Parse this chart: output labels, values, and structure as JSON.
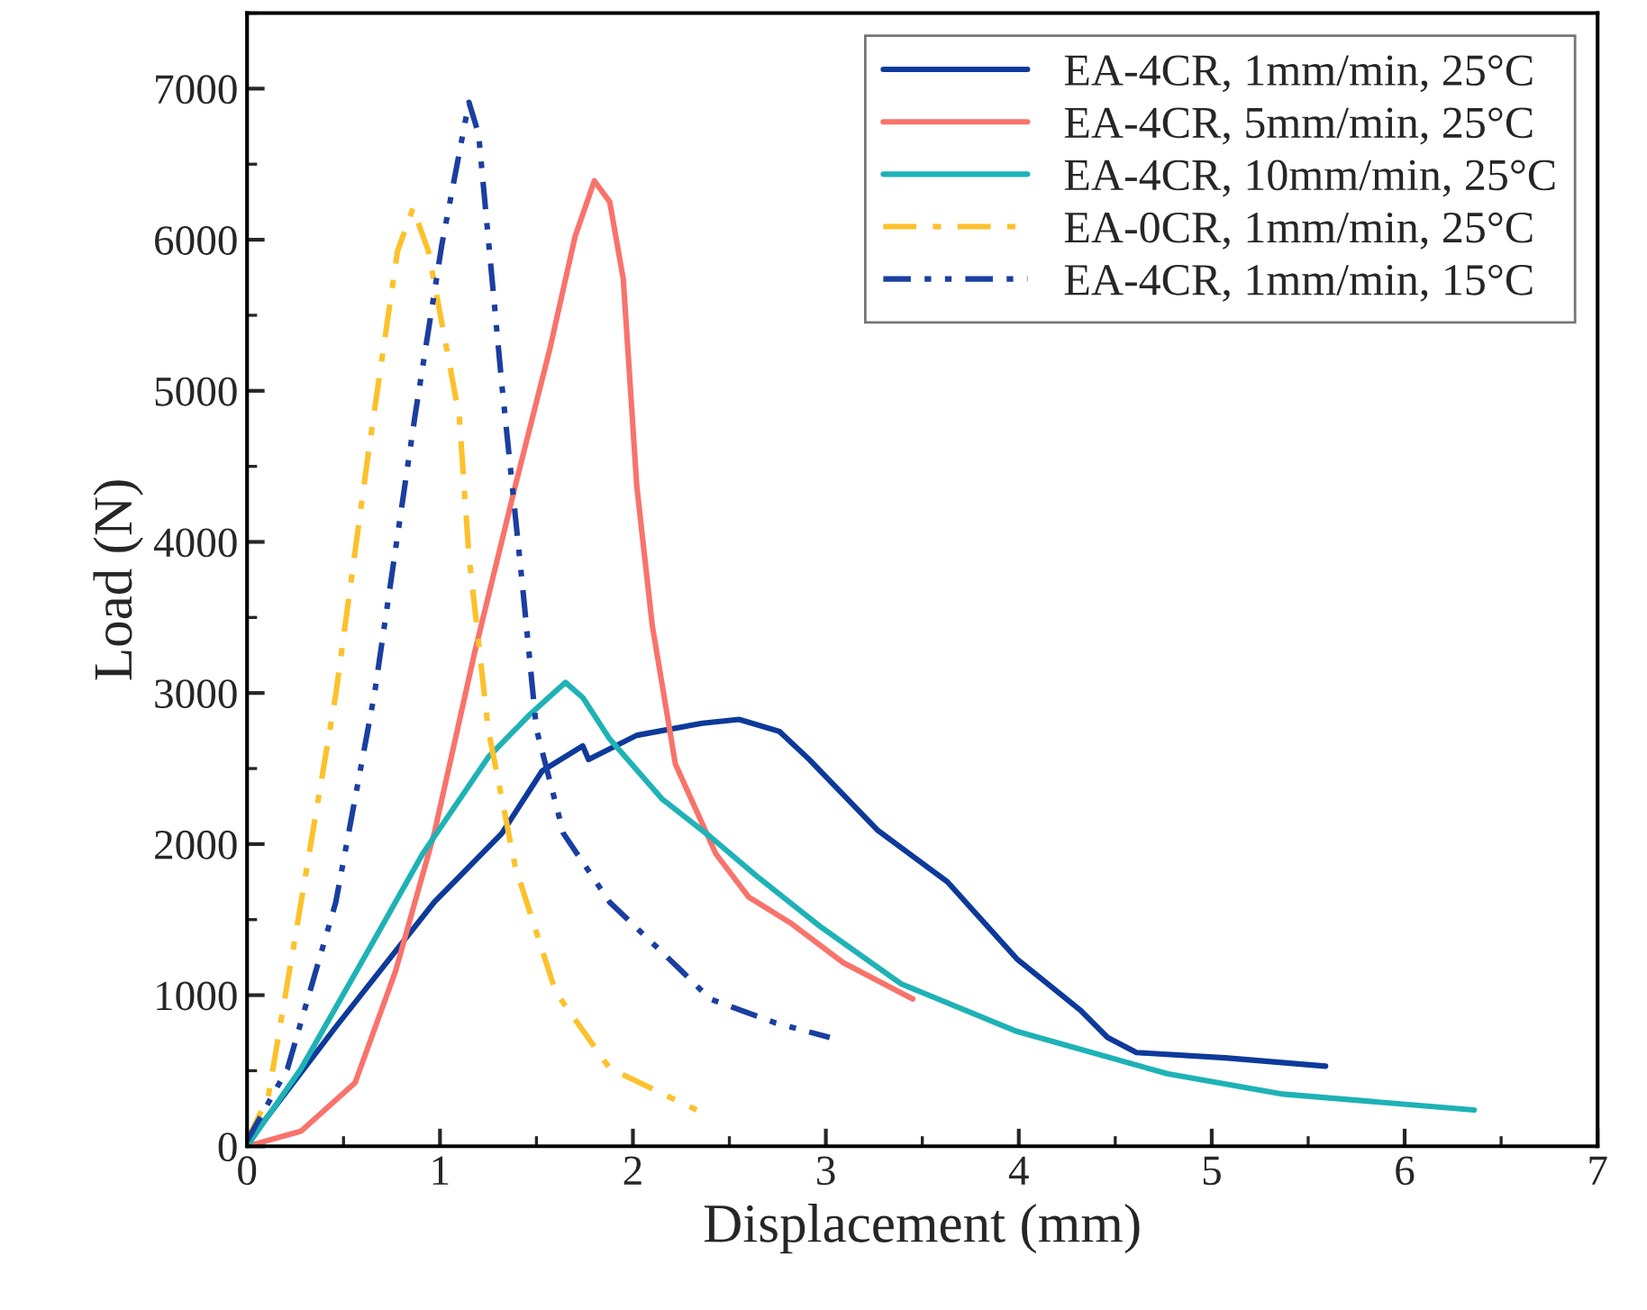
{
  "chart_data": {
    "type": "line",
    "xlabel": "Displacement (mm)",
    "ylabel": "Load (N)",
    "xlim": [
      0,
      7
    ],
    "xticks": [
      0,
      1,
      2,
      3,
      4,
      5,
      6,
      7
    ],
    "ylim": [
      0,
      7500
    ],
    "yticks": [
      0,
      1000,
      2000,
      3000,
      4000,
      5000,
      6000,
      7000
    ],
    "grid": false,
    "legend": "top right",
    "marker": "none",
    "series": [
      {
        "name": "EA-4CR, 1mm/min, 25°C",
        "color": "#0d3a9a",
        "line_style": "solid",
        "x": [
          0.01,
          0.46,
          0.97,
          1.32,
          1.53,
          1.74,
          1.77,
          2.02,
          2.36,
          2.55,
          2.76,
          2.91,
          3.27,
          3.63,
          3.99,
          4.32,
          4.46,
          4.61,
          5.07,
          5.59
        ],
        "values": [
          35,
          790,
          1615,
          2070,
          2485,
          2650,
          2560,
          2720,
          2800,
          2825,
          2745,
          2565,
          2090,
          1750,
          1240,
          900,
          720,
          620,
          585,
          530
        ]
      },
      {
        "name": "EA-4CR, 5mm/min, 25°C",
        "color": "#f8736b",
        "line_style": "solid",
        "x": [
          0,
          0.28,
          0.56,
          0.77,
          0.97,
          1.18,
          1.39,
          1.57,
          1.7,
          1.8,
          1.88,
          1.95,
          2.02,
          2.1,
          2.22,
          2.43,
          2.6,
          2.82,
          3.09,
          3.45
        ],
        "values": [
          0,
          100,
          420,
          1160,
          2070,
          3270,
          4370,
          5280,
          6020,
          6390,
          6250,
          5740,
          4370,
          3450,
          2530,
          1935,
          1650,
          1475,
          1215,
          975
        ]
      },
      {
        "name": "EA-4CR, 10mm/min, 25°C",
        "color": "#1eb2b6",
        "line_style": "solid",
        "x": [
          0,
          0.28,
          0.63,
          0.91,
          1.25,
          1.46,
          1.65,
          1.74,
          1.88,
          2.15,
          2.4,
          2.64,
          2.97,
          3.39,
          3.99,
          4.77,
          5.37,
          6.36
        ],
        "values": [
          0,
          515,
          1300,
          1935,
          2575,
          2850,
          3070,
          2970,
          2695,
          2300,
          2050,
          1790,
          1455,
          1075,
          760,
          480,
          345,
          240
        ]
      },
      {
        "name": "EA-0CR, 1mm/min, 25°C",
        "color": "#fdc12c",
        "line_style": "dashdot",
        "x": [
          0,
          0.11,
          0.28,
          0.46,
          0.63,
          0.78,
          0.86,
          0.94,
          1.1,
          1.15,
          1.25,
          1.39,
          1.6,
          1.88,
          2.33
        ],
        "values": [
          35,
          330,
          1615,
          2990,
          4600,
          5925,
          6210,
          5925,
          4830,
          3910,
          2760,
          1850,
          1020,
          515,
          240
        ]
      },
      {
        "name": "EA-4CR, 1mm/min, 15°C",
        "color": "#1a3fa0",
        "line_style": "dashdotdot",
        "x": [
          0,
          0.21,
          0.46,
          0.66,
          0.87,
          1.01,
          1.15,
          1.2,
          1.32,
          1.43,
          1.5,
          1.64,
          1.88,
          2.22,
          2.4,
          2.73,
          3.02
        ],
        "values": [
          35,
          515,
          1615,
          2990,
          4830,
          5970,
          6910,
          6700,
          5050,
          3680,
          2760,
          2070,
          1615,
          1200,
          975,
          820,
          720
        ]
      }
    ]
  }
}
